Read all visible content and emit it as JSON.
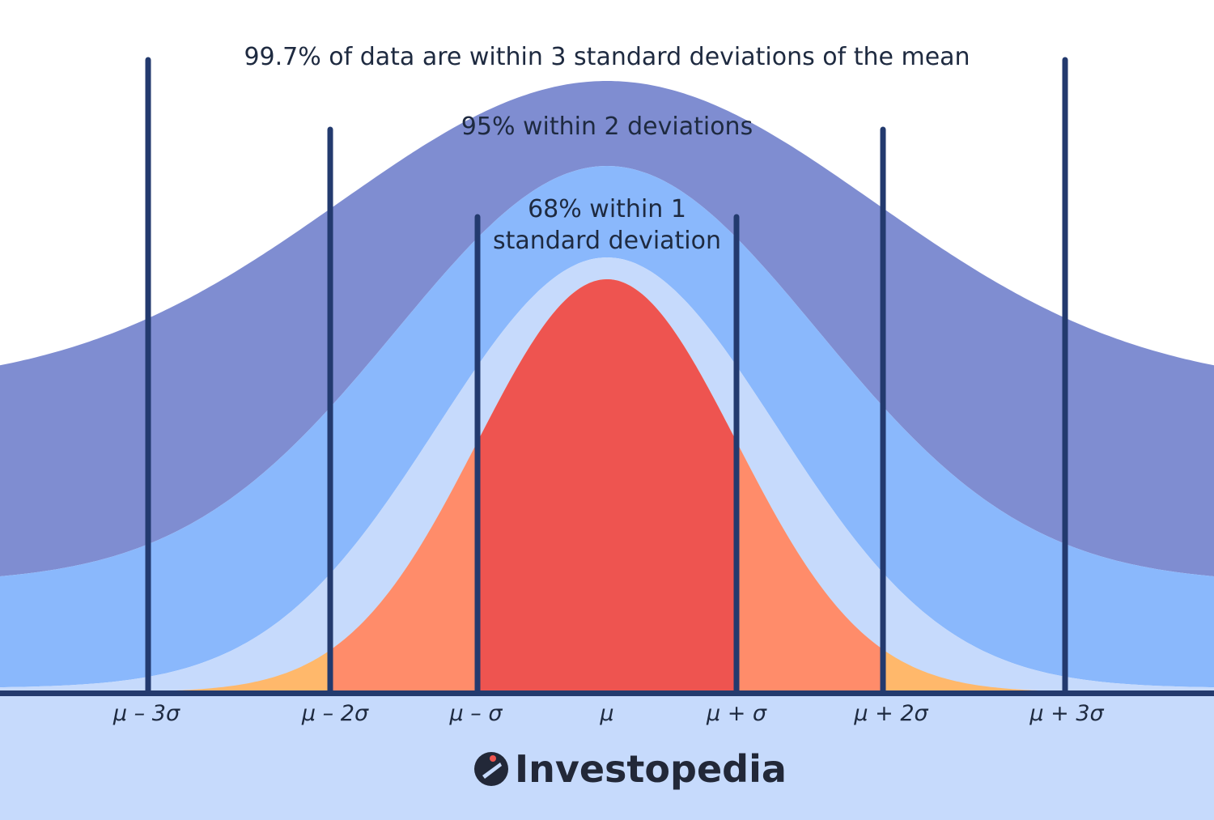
{
  "headings": {
    "within_3": "99.7% of data are within 3 standard deviations of the mean",
    "within_2": "95% within 2 deviations",
    "within_1_line1": "68% within 1",
    "within_1_line2": "standard deviation"
  },
  "ticks": [
    "μ – 3σ",
    "μ – 2σ",
    "μ – σ",
    "μ",
    "μ + σ",
    "μ + 2σ",
    "μ + 3σ"
  ],
  "brand": {
    "name": "Investopedia",
    "logo_icon": "investopedia-i-icon"
  },
  "colors": {
    "background": "#c6dafc",
    "band_3sd": "#7f8dd1",
    "band_2sd": "#8ab8fc",
    "band_1sd": "#c6dafc",
    "tail_3sd": "#ffb86b",
    "tail_2sd": "#ff8c6a",
    "core_1sd": "#ee5450",
    "lines": "#233a6e"
  }
}
